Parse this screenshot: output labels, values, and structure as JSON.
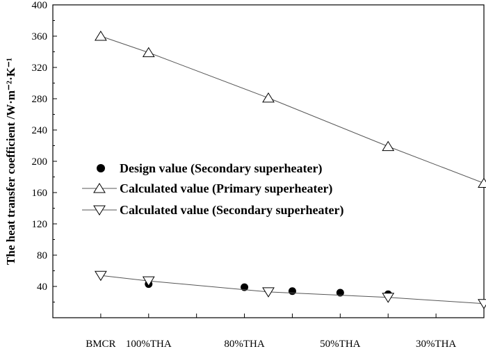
{
  "chart_data": {
    "type": "line",
    "ylabel": "The heat transfer coefficient /W·m⁻²·K⁻¹",
    "xlabel": "",
    "ylim": [
      0,
      400
    ],
    "yticks": [
      40,
      80,
      120,
      160,
      200,
      240,
      280,
      320,
      360,
      400
    ],
    "categories": [
      "BMCR",
      "100%THA",
      "80%THA",
      "50%THA",
      "30%THA"
    ],
    "category_x": [
      0,
      1,
      3,
      5,
      7
    ],
    "xlim": [
      -1,
      8
    ],
    "grid": false,
    "legend_position": "center-left",
    "series": [
      {
        "name": "Design value (Secondary superheater)",
        "kind": "scatter",
        "marker": "circle-filled",
        "points": [
          {
            "x": 1,
            "y": 43
          },
          {
            "x": 3,
            "y": 39
          },
          {
            "x": 4,
            "y": 34
          },
          {
            "x": 5,
            "y": 32
          },
          {
            "x": 6,
            "y": 30
          }
        ]
      },
      {
        "name": "Calculated value (Primary superheater)",
        "kind": "line",
        "marker": "triangle-up",
        "points": [
          {
            "x": 0,
            "y": 360
          },
          {
            "x": 1,
            "y": 339
          },
          {
            "x": 3.5,
            "y": 281
          },
          {
            "x": 6,
            "y": 219
          },
          {
            "x": 8,
            "y": 172
          }
        ]
      },
      {
        "name": "Calculated value (Secondary superheater)",
        "kind": "line",
        "marker": "triangle-down",
        "points": [
          {
            "x": 0,
            "y": 54
          },
          {
            "x": 1,
            "y": 47
          },
          {
            "x": 3.5,
            "y": 33
          },
          {
            "x": 6,
            "y": 26
          },
          {
            "x": 8,
            "y": 18
          }
        ]
      }
    ]
  },
  "colors": {
    "line": "#555555",
    "marker_stroke": "#000000",
    "marker_fill": "#ffffff",
    "dot": "#000000"
  }
}
